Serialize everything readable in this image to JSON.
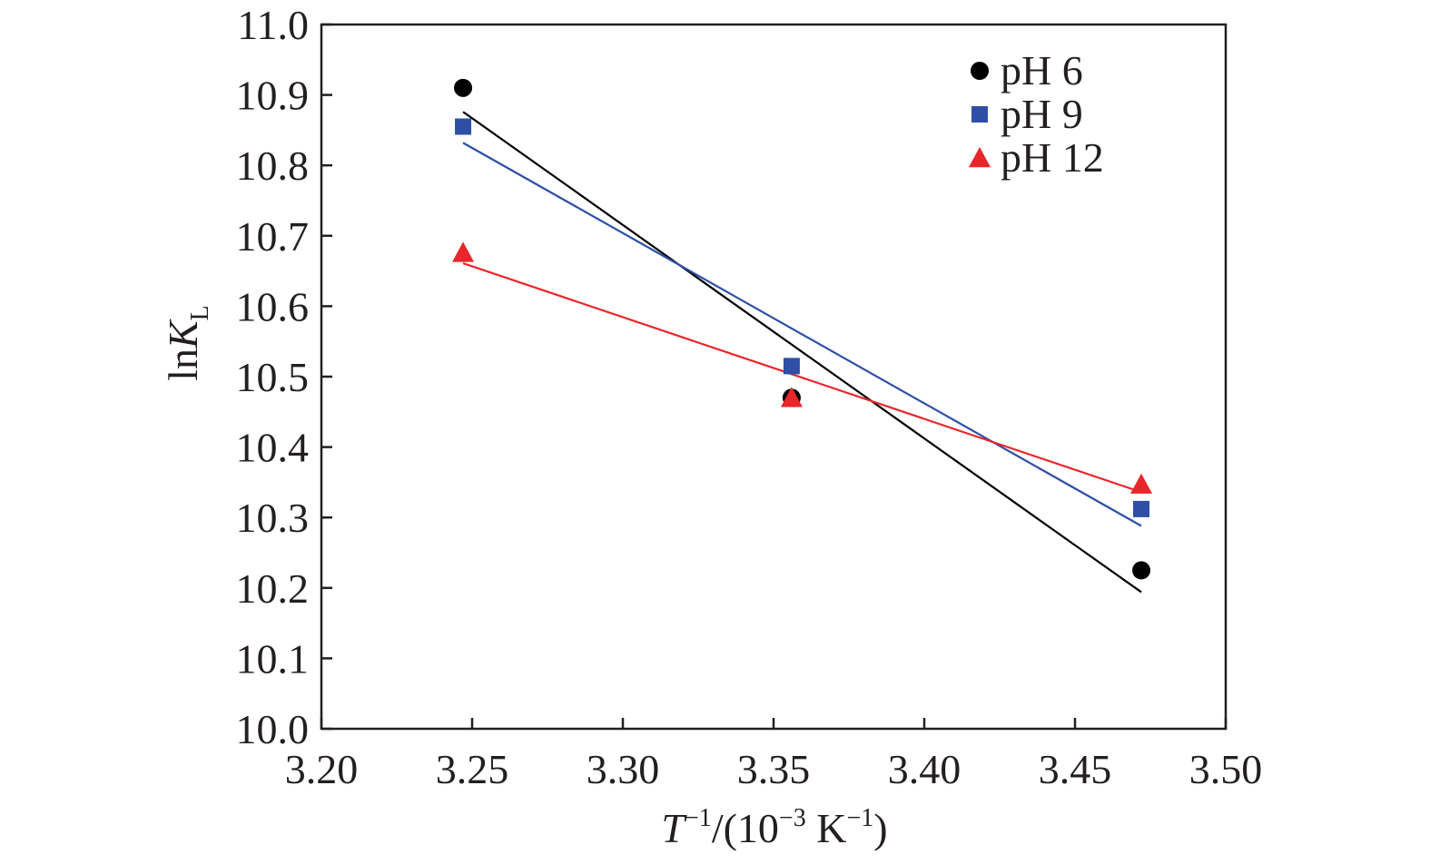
{
  "chart_data": {
    "type": "scatter",
    "x_axis": {
      "label_parts": [
        "T",
        "−1",
        "/(10",
        "−3",
        " K",
        "−1",
        ")"
      ],
      "range": [
        3.2,
        3.5
      ],
      "ticks": [
        "3.20",
        "3.25",
        "3.30",
        "3.35",
        "3.40",
        "3.45",
        "3.50"
      ]
    },
    "y_axis": {
      "label_parts": [
        "ln",
        "K",
        "L"
      ],
      "range": [
        10.0,
        11.0
      ],
      "ticks": [
        "10.0",
        "10.1",
        "10.2",
        "10.3",
        "10.4",
        "10.5",
        "10.6",
        "10.7",
        "10.8",
        "10.9",
        "11.0"
      ]
    },
    "grid": false,
    "legend_position": "top-right",
    "series": [
      {
        "name": "pH 6",
        "marker": "circle",
        "color": "#000000",
        "points": [
          [
            3.247,
            10.91
          ],
          [
            3.356,
            10.47
          ],
          [
            3.472,
            10.225
          ]
        ],
        "fit": [
          [
            3.247,
            10.876
          ],
          [
            3.472,
            10.194
          ]
        ]
      },
      {
        "name": "pH 9",
        "marker": "square",
        "color": "#2e4fa5",
        "points": [
          [
            3.247,
            10.855
          ],
          [
            3.356,
            10.515
          ],
          [
            3.472,
            10.312
          ]
        ],
        "fit": [
          [
            3.247,
            10.832
          ],
          [
            3.472,
            10.288
          ]
        ]
      },
      {
        "name": "pH 12",
        "marker": "triangle",
        "color": "#e8262b",
        "points": [
          [
            3.247,
            10.676
          ],
          [
            3.356,
            10.47
          ],
          [
            3.472,
            10.347
          ]
        ],
        "fit": [
          [
            3.247,
            10.661
          ],
          [
            3.472,
            10.336
          ]
        ]
      }
    ]
  }
}
